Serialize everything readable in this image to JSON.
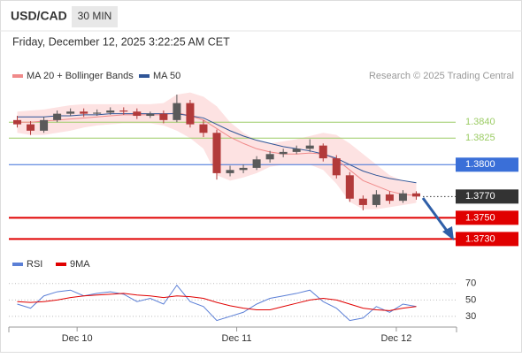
{
  "header": {
    "symbol": "USD/CAD",
    "timeframe": "30 MIN",
    "datetime": "Friday, December 12, 2025 3:22:25 AM CET"
  },
  "chart_data": [
    {
      "type": "candlestick",
      "source": "Research © 2025 Trading Central",
      "categories": [
        null,
        null,
        null,
        null,
        null,
        "Dec 10",
        null,
        null,
        null,
        null,
        null,
        null,
        null,
        null,
        null,
        null,
        null,
        "Dec 11",
        null,
        null,
        null,
        null,
        null,
        null,
        null,
        null,
        null,
        null,
        null,
        "Dec 12",
        null
      ],
      "open": [
        1.3842,
        1.3838,
        1.3832,
        1.3842,
        1.3848,
        1.385,
        1.3848,
        1.3849,
        1.3851,
        1.385,
        1.3846,
        1.3848,
        1.3842,
        1.3858,
        1.3838,
        1.383,
        1.3792,
        1.3795,
        1.3797,
        1.3805,
        1.381,
        1.3812,
        1.3815,
        1.3818,
        1.3806,
        1.379,
        1.3768,
        1.3762,
        1.3772,
        1.3766,
        1.3773
      ],
      "high": [
        1.3846,
        1.3841,
        1.3845,
        1.3851,
        1.3853,
        1.3853,
        1.3852,
        1.3854,
        1.3854,
        1.3853,
        1.385,
        1.3851,
        1.3866,
        1.3861,
        1.3842,
        1.3833,
        1.3799,
        1.38,
        1.3808,
        1.3813,
        1.3815,
        1.3818,
        1.3824,
        1.382,
        1.3809,
        1.3793,
        1.3771,
        1.3776,
        1.3775,
        1.3776,
        1.3775
      ],
      "low": [
        1.3835,
        1.3828,
        1.383,
        1.384,
        1.3846,
        1.3845,
        1.3846,
        1.3847,
        1.3847,
        1.3843,
        1.3844,
        1.3839,
        1.384,
        1.3835,
        1.3826,
        1.3786,
        1.3789,
        1.3792,
        1.3795,
        1.3802,
        1.3807,
        1.381,
        1.3812,
        1.3803,
        1.3787,
        1.3765,
        1.3757,
        1.376,
        1.3763,
        1.3764,
        1.3767
      ],
      "close": [
        1.3838,
        1.3832,
        1.3842,
        1.3848,
        1.385,
        1.3848,
        1.3849,
        1.3851,
        1.385,
        1.3846,
        1.3848,
        1.3842,
        1.3858,
        1.3838,
        1.383,
        1.3792,
        1.3795,
        1.3797,
        1.3805,
        1.381,
        1.3812,
        1.3815,
        1.3818,
        1.3806,
        1.379,
        1.3768,
        1.3762,
        1.3772,
        1.3766,
        1.3773,
        1.377
      ],
      "up_color": "#5a5a5a",
      "down_color": "#b23a3a",
      "series": [
        {
          "name": "MA 20 + Bollinger Bands",
          "color": "#f08a8a",
          "band_color": "#fde2e2",
          "values": [
            1.384,
            1.384,
            1.3841,
            1.3842,
            1.3843,
            1.3844,
            1.3845,
            1.3846,
            1.3847,
            1.3847,
            1.3847,
            1.3847,
            1.3849,
            1.3846,
            1.3842,
            1.3834,
            1.3826,
            1.382,
            1.3815,
            1.3812,
            1.381,
            1.381,
            1.3811,
            1.381,
            1.3805,
            1.3795,
            1.3785,
            1.378,
            1.3775,
            1.3772,
            1.3771
          ],
          "upper": [
            1.385,
            1.3851,
            1.3852,
            1.3854,
            1.3856,
            1.3857,
            1.3857,
            1.3857,
            1.3857,
            1.3857,
            1.3857,
            1.3858,
            1.3866,
            1.3868,
            1.3864,
            1.3855,
            1.384,
            1.383,
            1.3823,
            1.382,
            1.3822,
            1.3824,
            1.3827,
            1.383,
            1.3828,
            1.382,
            1.381,
            1.38,
            1.379,
            1.3785,
            1.3783
          ],
          "lower": [
            1.383,
            1.3828,
            1.3828,
            1.383,
            1.3832,
            1.3835,
            1.3837,
            1.3838,
            1.3839,
            1.3839,
            1.3839,
            1.3837,
            1.3832,
            1.3825,
            1.3815,
            1.379,
            1.3785,
            1.3788,
            1.3792,
            1.3798,
            1.38,
            1.38,
            1.38,
            1.3795,
            1.3782,
            1.3765,
            1.3758,
            1.3758,
            1.376,
            1.3762,
            1.3764
          ]
        },
        {
          "name": "MA 50",
          "color": "#2f5597",
          "values": [
            1.3845,
            1.3845,
            1.3845,
            1.3846,
            1.3846,
            1.3847,
            1.3847,
            1.3848,
            1.3848,
            1.3848,
            1.3848,
            1.3848,
            1.3848,
            1.3846,
            1.3844,
            1.3838,
            1.3832,
            1.3827,
            1.3823,
            1.382,
            1.3817,
            1.3815,
            1.3813,
            1.381,
            1.3806,
            1.38,
            1.3794,
            1.379,
            1.3787,
            1.3785,
            1.3783
          ]
        }
      ],
      "ylim": [
        1.3722,
        1.3876
      ],
      "levels": [
        {
          "value": 1.384,
          "label": "1.3840",
          "color": "#9ccc65",
          "box": false,
          "style": "thin"
        },
        {
          "value": 1.3825,
          "label": "1.3825",
          "color": "#9ccc65",
          "box": false,
          "style": "thin"
        },
        {
          "value": 1.38,
          "label": "1.3800",
          "color": "#3a6fd8",
          "box": true,
          "style": "thin"
        },
        {
          "value": 1.377,
          "label": "1.3770",
          "color": "#333333",
          "box": true,
          "style": "dotted"
        },
        {
          "value": 1.375,
          "label": "1.3750",
          "color": "#e00000",
          "box": true,
          "style": "thick"
        },
        {
          "value": 1.373,
          "label": "1.3730",
          "color": "#e00000",
          "box": true,
          "style": "thick"
        }
      ]
    },
    {
      "type": "line",
      "series": [
        {
          "name": "RSI",
          "color": "#5b7fd6",
          "values": [
            45,
            40,
            55,
            60,
            62,
            55,
            58,
            60,
            57,
            48,
            52,
            45,
            68,
            48,
            42,
            25,
            30,
            35,
            45,
            52,
            55,
            58,
            62,
            48,
            40,
            25,
            28,
            42,
            35,
            45,
            42
          ]
        },
        {
          "name": "9MA",
          "color": "#e00000",
          "values": [
            48,
            47,
            48,
            50,
            53,
            55,
            56,
            57,
            58,
            56,
            55,
            53,
            55,
            54,
            52,
            47,
            43,
            40,
            38,
            38,
            42,
            46,
            50,
            52,
            50,
            45,
            40,
            38,
            37,
            40,
            42
          ]
        }
      ],
      "ylim": [
        17,
        87
      ],
      "yticks": [
        70,
        50,
        30
      ],
      "grid": true
    }
  ]
}
